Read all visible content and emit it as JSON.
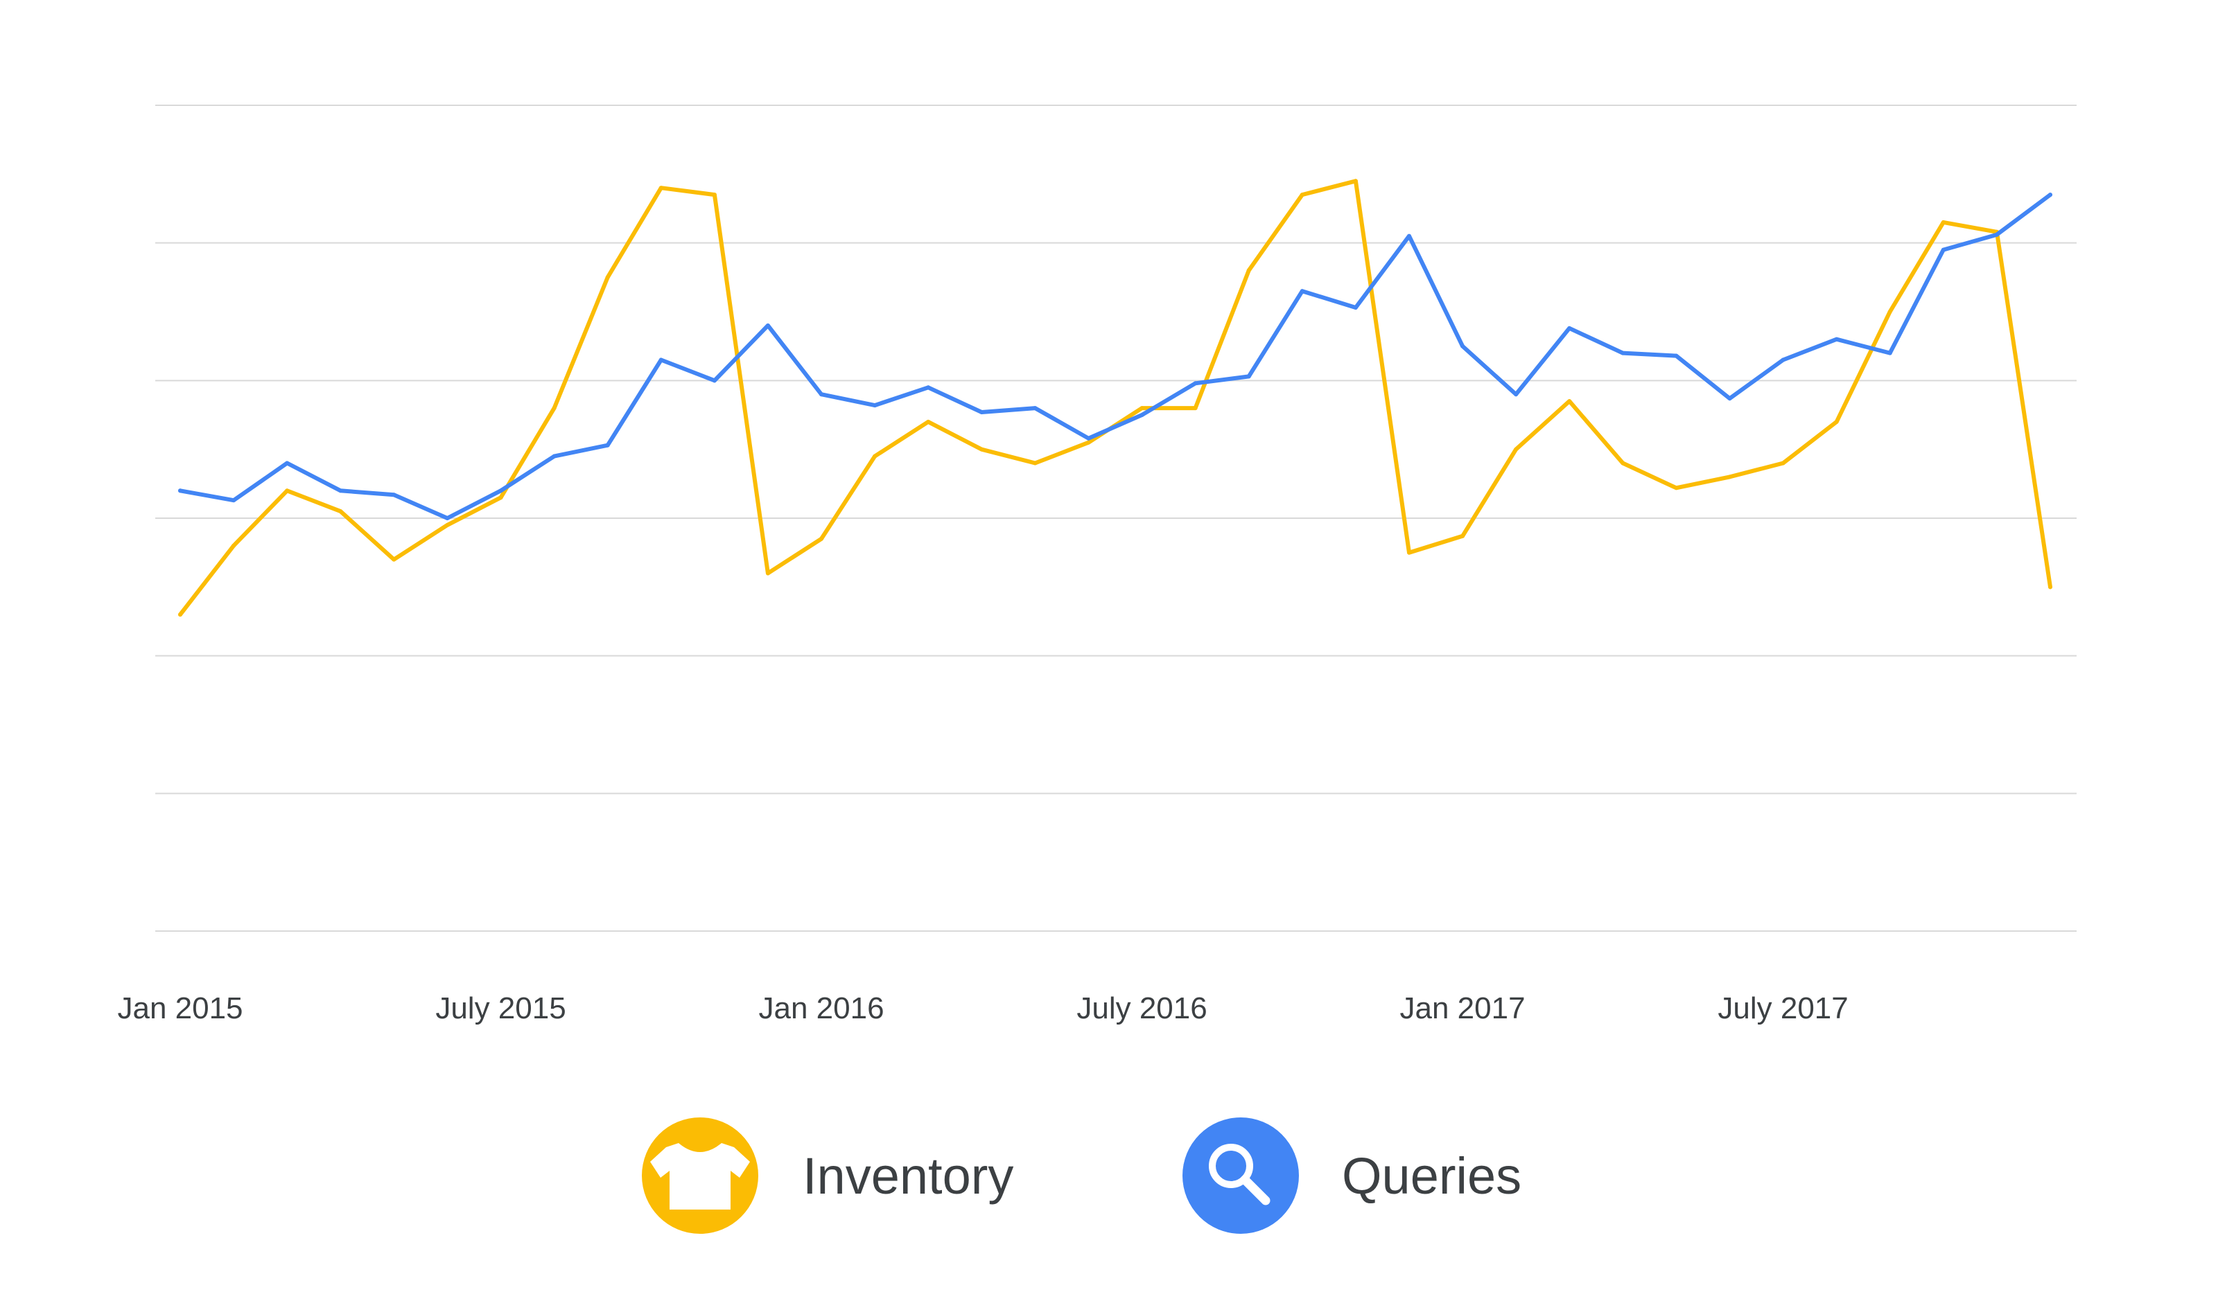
{
  "chart_data": {
    "type": "line",
    "title": "",
    "xlabel": "",
    "ylabel": "",
    "x": [
      "2015-01",
      "2015-02",
      "2015-03",
      "2015-04",
      "2015-05",
      "2015-06",
      "2015-07",
      "2015-08",
      "2015-09",
      "2015-10",
      "2015-11",
      "2015-12",
      "2016-01",
      "2016-02",
      "2016-03",
      "2016-04",
      "2016-05",
      "2016-06",
      "2016-07",
      "2016-08",
      "2016-09",
      "2016-10",
      "2016-11",
      "2016-12",
      "2017-01",
      "2017-02",
      "2017-03",
      "2017-04",
      "2017-05",
      "2017-06",
      "2017-07",
      "2017-08",
      "2017-09",
      "2017-10",
      "2017-11",
      "2017-12"
    ],
    "x_ticks": [
      {
        "x": "2015-01",
        "label": "Jan 2015"
      },
      {
        "x": "2015-07",
        "label": "July 2015"
      },
      {
        "x": "2016-01",
        "label": "Jan 2016"
      },
      {
        "x": "2016-07",
        "label": "July 2016"
      },
      {
        "x": "2017-01",
        "label": "Jan 2017"
      },
      {
        "x": "2017-07",
        "label": "July 2017"
      }
    ],
    "ylim": [
      0,
      6
    ],
    "y_gridlines": [
      0,
      1,
      2,
      3,
      4,
      5,
      6
    ],
    "y_tick_labels_shown": false,
    "grid": true,
    "legend": "bottom-center",
    "series": [
      {
        "name": "Inventory",
        "color": "#fbbc04",
        "icon": "shirt-icon",
        "values": [
          2.3,
          2.8,
          3.2,
          3.05,
          2.7,
          2.95,
          3.15,
          3.8,
          4.75,
          5.4,
          5.35,
          2.6,
          2.85,
          3.45,
          3.7,
          3.5,
          3.4,
          3.55,
          3.8,
          3.8,
          4.8,
          5.35,
          5.45,
          2.75,
          2.87,
          3.5,
          3.85,
          3.4,
          3.22,
          3.3,
          3.4,
          3.7,
          4.5,
          5.15,
          5.08,
          2.5
        ]
      },
      {
        "name": "Queries",
        "color": "#4285f4",
        "icon": "search-icon",
        "values": [
          3.2,
          3.13,
          3.4,
          3.2,
          3.17,
          3.0,
          3.2,
          3.45,
          3.53,
          4.15,
          4.0,
          4.4,
          3.9,
          3.82,
          3.95,
          3.77,
          3.8,
          3.58,
          3.75,
          3.98,
          4.03,
          4.65,
          4.53,
          5.05,
          4.25,
          3.9,
          4.38,
          4.2,
          4.18,
          3.87,
          4.15,
          4.3,
          4.2,
          4.95,
          5.06,
          5.35
        ]
      }
    ]
  }
}
